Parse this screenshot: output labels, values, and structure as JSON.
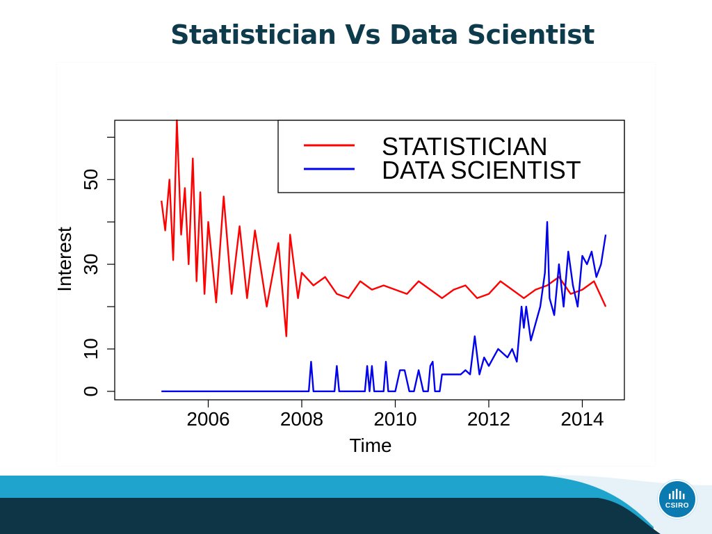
{
  "slide": {
    "title": "Statistician Vs Data Scientist",
    "logo_text": "CSIRO"
  },
  "colors": {
    "title": "#0d3b4c",
    "footer_dark": "#0d3546",
    "footer_light": "#1fa4cd",
    "statistician": "#ff0000",
    "data_scientist": "#0000ee"
  },
  "chart_data": {
    "type": "line",
    "title": "",
    "xlabel": "Time",
    "ylabel": "Interest",
    "xlim": [
      2004.0,
      2014.9
    ],
    "ylim": [
      -2,
      64
    ],
    "x_ticks": [
      2006,
      2008,
      2010,
      2012,
      2014
    ],
    "x_tick_labels": [
      "2006",
      "2008",
      "2010",
      "2012",
      "2014"
    ],
    "y_ticks": [
      0,
      10,
      20,
      30,
      40,
      50,
      60
    ],
    "y_tick_labels": [
      "0",
      "10",
      "",
      "30",
      "",
      "50",
      ""
    ],
    "legend_position": "top-right",
    "grid": false,
    "series": [
      {
        "name": "STATISTICIAN",
        "color": "#ff0000",
        "x": [
          2005.0,
          2005.08,
          2005.17,
          2005.25,
          2005.33,
          2005.42,
          2005.5,
          2005.58,
          2005.67,
          2005.75,
          2005.83,
          2005.92,
          2006.0,
          2006.17,
          2006.33,
          2006.5,
          2006.67,
          2006.83,
          2007.0,
          2007.25,
          2007.5,
          2007.67,
          2007.75,
          2007.92,
          2008.0,
          2008.25,
          2008.5,
          2008.75,
          2009.0,
          2009.25,
          2009.5,
          2009.75,
          2010.0,
          2010.25,
          2010.5,
          2010.75,
          2011.0,
          2011.25,
          2011.5,
          2011.75,
          2012.0,
          2012.25,
          2012.5,
          2012.75,
          2013.0,
          2013.25,
          2013.5,
          2013.75,
          2014.0,
          2014.25,
          2014.5
        ],
        "values": [
          45,
          38,
          50,
          31,
          64,
          37,
          48,
          30,
          55,
          26,
          47,
          23,
          40,
          21,
          46,
          23,
          39,
          22,
          38,
          20,
          35,
          13,
          37,
          22,
          28,
          25,
          27,
          23,
          22,
          26,
          24,
          25,
          24,
          23,
          26,
          24,
          22,
          24,
          25,
          22,
          23,
          26,
          24,
          22,
          24,
          25,
          27,
          23,
          24,
          26,
          20
        ]
      },
      {
        "name": "DATA SCIENTIST",
        "color": "#0000ee",
        "x": [
          2005.0,
          2008.15,
          2008.2,
          2008.25,
          2008.7,
          2008.75,
          2008.8,
          2009.35,
          2009.4,
          2009.45,
          2009.5,
          2009.55,
          2009.6,
          2009.75,
          2009.8,
          2009.85,
          2010.0,
          2010.1,
          2010.2,
          2010.3,
          2010.4,
          2010.5,
          2010.6,
          2010.7,
          2010.75,
          2010.8,
          2010.85,
          2010.95,
          2011.0,
          2011.1,
          2011.25,
          2011.4,
          2011.5,
          2011.6,
          2011.7,
          2011.8,
          2011.9,
          2012.0,
          2012.1,
          2012.2,
          2012.3,
          2012.4,
          2012.5,
          2012.6,
          2012.7,
          2012.75,
          2012.8,
          2012.9,
          2013.0,
          2013.1,
          2013.2,
          2013.25,
          2013.3,
          2013.4,
          2013.5,
          2013.6,
          2013.7,
          2013.8,
          2013.9,
          2014.0,
          2014.1,
          2014.2,
          2014.3,
          2014.4,
          2014.5
        ],
        "values": [
          0,
          0,
          7,
          0,
          0,
          6,
          0,
          0,
          6,
          0,
          6,
          0,
          0,
          0,
          7,
          0,
          0,
          5,
          5,
          0,
          0,
          5,
          0,
          0,
          6,
          7,
          0,
          0,
          4,
          4,
          4,
          4,
          5,
          4,
          13,
          4,
          8,
          6,
          8,
          10,
          9,
          8,
          10,
          7,
          20,
          15,
          20,
          12,
          16,
          20,
          28,
          40,
          22,
          18,
          30,
          20,
          33,
          25,
          20,
          32,
          30,
          33,
          27,
          30,
          37
        ]
      }
    ]
  }
}
